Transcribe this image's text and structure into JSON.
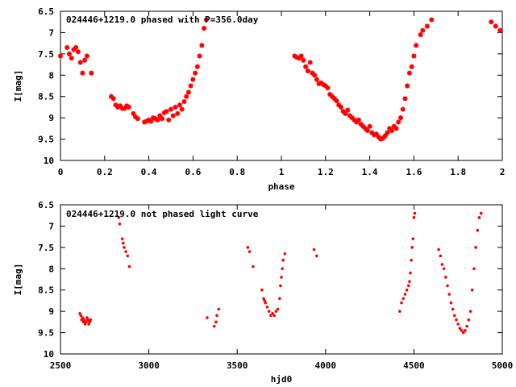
{
  "colors": {
    "points": "#ff0000",
    "frame": "#000000",
    "background": "#ffffff"
  },
  "chart_data": [
    {
      "type": "scatter",
      "title": "024446+1219.0 phased with P=356.0day",
      "xlabel": "phase",
      "ylabel": "I[mag]",
      "xlim": [
        0,
        2
      ],
      "ylim": [
        6.5,
        10
      ],
      "y_inverted": true,
      "xticks": [
        "0",
        "0.2",
        "0.4",
        "0.6",
        "0.8",
        "1",
        "1.2",
        "1.4",
        "1.6",
        "1.8",
        "2"
      ],
      "yticks": [
        "6.5",
        "7",
        "7.5",
        "8",
        "8.5",
        "9",
        "9.5",
        "10"
      ],
      "grid": false,
      "marker": "cross-star",
      "series": [
        {
          "points": [
            [
              0.0,
              7.55
            ],
            [
              0.03,
              7.35
            ],
            [
              0.04,
              7.5
            ],
            [
              0.05,
              7.6
            ],
            [
              0.06,
              7.4
            ],
            [
              0.07,
              7.35
            ],
            [
              0.08,
              7.45
            ],
            [
              0.09,
              7.7
            ],
            [
              0.1,
              7.95
            ],
            [
              0.11,
              7.65
            ],
            [
              0.12,
              7.55
            ],
            [
              0.14,
              7.95
            ],
            [
              0.23,
              8.5
            ],
            [
              0.24,
              8.55
            ],
            [
              0.25,
              8.7
            ],
            [
              0.26,
              8.75
            ],
            [
              0.27,
              8.72
            ],
            [
              0.28,
              8.78
            ],
            [
              0.29,
              8.78
            ],
            [
              0.3,
              8.72
            ],
            [
              0.31,
              8.75
            ],
            [
              0.33,
              8.9
            ],
            [
              0.34,
              8.98
            ],
            [
              0.35,
              9.02
            ],
            [
              0.38,
              9.1
            ],
            [
              0.39,
              9.08
            ],
            [
              0.4,
              9.05
            ],
            [
              0.41,
              9.08
            ],
            [
              0.42,
              9.0
            ],
            [
              0.43,
              9.02
            ],
            [
              0.44,
              9.05
            ],
            [
              0.45,
              8.95
            ],
            [
              0.46,
              9.02
            ],
            [
              0.47,
              8.88
            ],
            [
              0.48,
              8.85
            ],
            [
              0.49,
              9.05
            ],
            [
              0.5,
              8.8
            ],
            [
              0.51,
              8.95
            ],
            [
              0.52,
              8.75
            ],
            [
              0.53,
              8.9
            ],
            [
              0.54,
              8.7
            ],
            [
              0.55,
              8.8
            ],
            [
              0.56,
              8.62
            ],
            [
              0.57,
              8.5
            ],
            [
              0.58,
              8.4
            ],
            [
              0.59,
              8.25
            ],
            [
              0.6,
              8.1
            ],
            [
              0.61,
              7.95
            ],
            [
              0.62,
              7.8
            ],
            [
              0.63,
              7.55
            ],
            [
              0.64,
              7.3
            ],
            [
              0.65,
              6.9
            ],
            [
              0.66,
              6.7
            ],
            [
              1.06,
              7.55
            ],
            [
              1.07,
              7.58
            ],
            [
              1.08,
              7.6
            ],
            [
              1.09,
              7.55
            ],
            [
              1.1,
              7.65
            ],
            [
              1.11,
              7.8
            ],
            [
              1.12,
              7.9
            ],
            [
              1.13,
              7.7
            ],
            [
              1.14,
              7.95
            ],
            [
              1.15,
              8.0
            ],
            [
              1.16,
              8.1
            ],
            [
              1.17,
              8.2
            ],
            [
              1.18,
              8.18
            ],
            [
              1.19,
              8.22
            ],
            [
              1.2,
              8.25
            ],
            [
              1.21,
              8.3
            ],
            [
              1.22,
              8.45
            ],
            [
              1.23,
              8.5
            ],
            [
              1.24,
              8.55
            ],
            [
              1.25,
              8.6
            ],
            [
              1.26,
              8.7
            ],
            [
              1.27,
              8.75
            ],
            [
              1.28,
              8.85
            ],
            [
              1.29,
              8.9
            ],
            [
              1.3,
              8.82
            ],
            [
              1.31,
              8.95
            ],
            [
              1.32,
              9.0
            ],
            [
              1.33,
              9.05
            ],
            [
              1.34,
              9.1
            ],
            [
              1.35,
              9.05
            ],
            [
              1.36,
              9.15
            ],
            [
              1.37,
              9.2
            ],
            [
              1.38,
              9.25
            ],
            [
              1.39,
              9.3
            ],
            [
              1.4,
              9.2
            ],
            [
              1.41,
              9.35
            ],
            [
              1.42,
              9.4
            ],
            [
              1.43,
              9.38
            ],
            [
              1.44,
              9.45
            ],
            [
              1.45,
              9.5
            ],
            [
              1.46,
              9.48
            ],
            [
              1.47,
              9.42
            ],
            [
              1.48,
              9.35
            ],
            [
              1.49,
              9.25
            ],
            [
              1.5,
              9.3
            ],
            [
              1.51,
              9.2
            ],
            [
              1.52,
              9.25
            ],
            [
              1.53,
              9.1
            ],
            [
              1.54,
              9.0
            ],
            [
              1.55,
              8.8
            ],
            [
              1.56,
              8.55
            ],
            [
              1.57,
              8.25
            ],
            [
              1.58,
              7.95
            ],
            [
              1.59,
              7.8
            ],
            [
              1.6,
              7.55
            ],
            [
              1.61,
              7.3
            ],
            [
              1.63,
              7.05
            ],
            [
              1.64,
              6.95
            ],
            [
              1.66,
              6.85
            ],
            [
              1.68,
              6.7
            ],
            [
              1.95,
              6.75
            ],
            [
              1.97,
              6.85
            ],
            [
              1.99,
              6.95
            ]
          ]
        }
      ]
    },
    {
      "type": "scatter",
      "title": "024446+1219.0 not phased light curve",
      "xlabel": "hjd0",
      "ylabel": "I[mag]",
      "xlim": [
        2500,
        5000
      ],
      "ylim": [
        6.5,
        10
      ],
      "y_inverted": true,
      "xticks": [
        "2500",
        "3000",
        "3500",
        "4000",
        "4500",
        "5000"
      ],
      "yticks": [
        "6.5",
        "7",
        "7.5",
        "8",
        "8.5",
        "9",
        "9.5",
        "10"
      ],
      "grid": false,
      "marker": "dot",
      "series": [
        {
          "points": [
            [
              2610,
              9.05
            ],
            [
              2615,
              9.1
            ],
            [
              2620,
              9.2
            ],
            [
              2625,
              9.15
            ],
            [
              2630,
              9.25
            ],
            [
              2635,
              9.2
            ],
            [
              2640,
              9.3
            ],
            [
              2645,
              9.25
            ],
            [
              2650,
              9.15
            ],
            [
              2655,
              9.2
            ],
            [
              2660,
              9.3
            ],
            [
              2665,
              9.25
            ],
            [
              2670,
              9.2
            ],
            [
              2830,
              6.8
            ],
            [
              2835,
              6.95
            ],
            [
              2850,
              7.3
            ],
            [
              2855,
              7.4
            ],
            [
              2860,
              7.5
            ],
            [
              2870,
              7.6
            ],
            [
              2880,
              7.7
            ],
            [
              2890,
              7.95
            ],
            [
              3330,
              9.15
            ],
            [
              3370,
              9.35
            ],
            [
              3380,
              9.25
            ],
            [
              3385,
              9.1
            ],
            [
              3395,
              8.95
            ],
            [
              3560,
              7.5
            ],
            [
              3570,
              7.6
            ],
            [
              3590,
              7.95
            ],
            [
              3640,
              8.5
            ],
            [
              3650,
              8.7
            ],
            [
              3655,
              8.75
            ],
            [
              3660,
              8.8
            ],
            [
              3670,
              8.9
            ],
            [
              3680,
              9.0
            ],
            [
              3690,
              9.1
            ],
            [
              3700,
              9.05
            ],
            [
              3710,
              9.1
            ],
            [
              3720,
              9.0
            ],
            [
              3730,
              8.95
            ],
            [
              3740,
              8.7
            ],
            [
              3745,
              8.4
            ],
            [
              3750,
              8.2
            ],
            [
              3755,
              8.0
            ],
            [
              3760,
              7.8
            ],
            [
              3770,
              7.65
            ],
            [
              3935,
              7.55
            ],
            [
              3950,
              7.7
            ],
            [
              4420,
              9.0
            ],
            [
              4430,
              8.8
            ],
            [
              4440,
              8.7
            ],
            [
              4450,
              8.6
            ],
            [
              4460,
              8.5
            ],
            [
              4470,
              8.4
            ],
            [
              4475,
              8.3
            ],
            [
              4480,
              8.1
            ],
            [
              4485,
              7.8
            ],
            [
              4490,
              7.5
            ],
            [
              4495,
              7.3
            ],
            [
              4500,
              6.8
            ],
            [
              4505,
              6.7
            ],
            [
              4640,
              7.55
            ],
            [
              4650,
              7.7
            ],
            [
              4660,
              7.9
            ],
            [
              4670,
              8.0
            ],
            [
              4680,
              8.2
            ],
            [
              4690,
              8.4
            ],
            [
              4700,
              8.6
            ],
            [
              4710,
              8.8
            ],
            [
              4720,
              8.95
            ],
            [
              4730,
              9.1
            ],
            [
              4740,
              9.2
            ],
            [
              4750,
              9.3
            ],
            [
              4760,
              9.4
            ],
            [
              4770,
              9.45
            ],
            [
              4780,
              9.5
            ],
            [
              4790,
              9.45
            ],
            [
              4800,
              9.35
            ],
            [
              4810,
              9.2
            ],
            [
              4820,
              9.0
            ],
            [
              4830,
              8.5
            ],
            [
              4840,
              8.0
            ],
            [
              4850,
              7.5
            ],
            [
              4860,
              7.1
            ],
            [
              4870,
              6.8
            ],
            [
              4880,
              6.7
            ]
          ]
        }
      ]
    }
  ]
}
